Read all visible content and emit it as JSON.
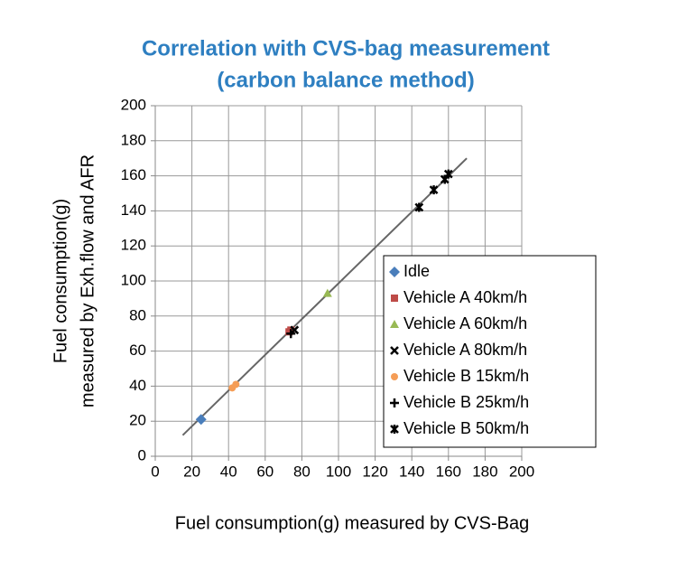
{
  "chart_data": {
    "type": "scatter",
    "title": [
      "Correlation with CVS-bag measurement",
      "(carbon balance method)"
    ],
    "x_label": "Fuel consumption(g) measured by CVS-Bag",
    "y_label": [
      "Fuel consumption(g)",
      "measured by Exh.flow and AFR"
    ],
    "xlim": [
      0,
      200
    ],
    "ylim": [
      0,
      200
    ],
    "xticks": [
      0,
      20,
      40,
      60,
      80,
      100,
      120,
      140,
      160,
      180,
      200
    ],
    "yticks": [
      0,
      20,
      40,
      60,
      80,
      100,
      120,
      140,
      160,
      180,
      200
    ],
    "grid": true,
    "legend": "right",
    "reference_line": {
      "x": [
        15,
        170
      ],
      "y": [
        12,
        170
      ],
      "color": "#666666"
    },
    "series": [
      {
        "name": "Idle",
        "marker": "diamond",
        "color": "#4a7ebb",
        "x": [
          25
        ],
        "values": [
          21
        ]
      },
      {
        "name": "Vehicle A 40km/h",
        "marker": "square",
        "color": "#be4b48",
        "x": [
          73,
          74
        ],
        "values": [
          71,
          72
        ]
      },
      {
        "name": "Vehicle A 60km/h",
        "marker": "triangle",
        "color": "#98b954",
        "x": [
          94
        ],
        "values": [
          93
        ]
      },
      {
        "name": "Vehicle A 80km/h",
        "marker": "x",
        "color": "#000000",
        "x": [
          76
        ],
        "values": [
          72
        ]
      },
      {
        "name": "Vehicle B 15km/h",
        "marker": "circle",
        "color": "#f59d56",
        "x": [
          42,
          44
        ],
        "values": [
          39,
          41
        ]
      },
      {
        "name": "Vehicle B 25km/h",
        "marker": "plus",
        "color": "#000000",
        "x": [
          74
        ],
        "values": [
          70
        ]
      },
      {
        "name": "Vehicle B 50km/h",
        "marker": "star",
        "color": "#000000",
        "x": [
          144,
          152,
          158,
          160
        ],
        "values": [
          142,
          152,
          158,
          161
        ]
      }
    ]
  }
}
